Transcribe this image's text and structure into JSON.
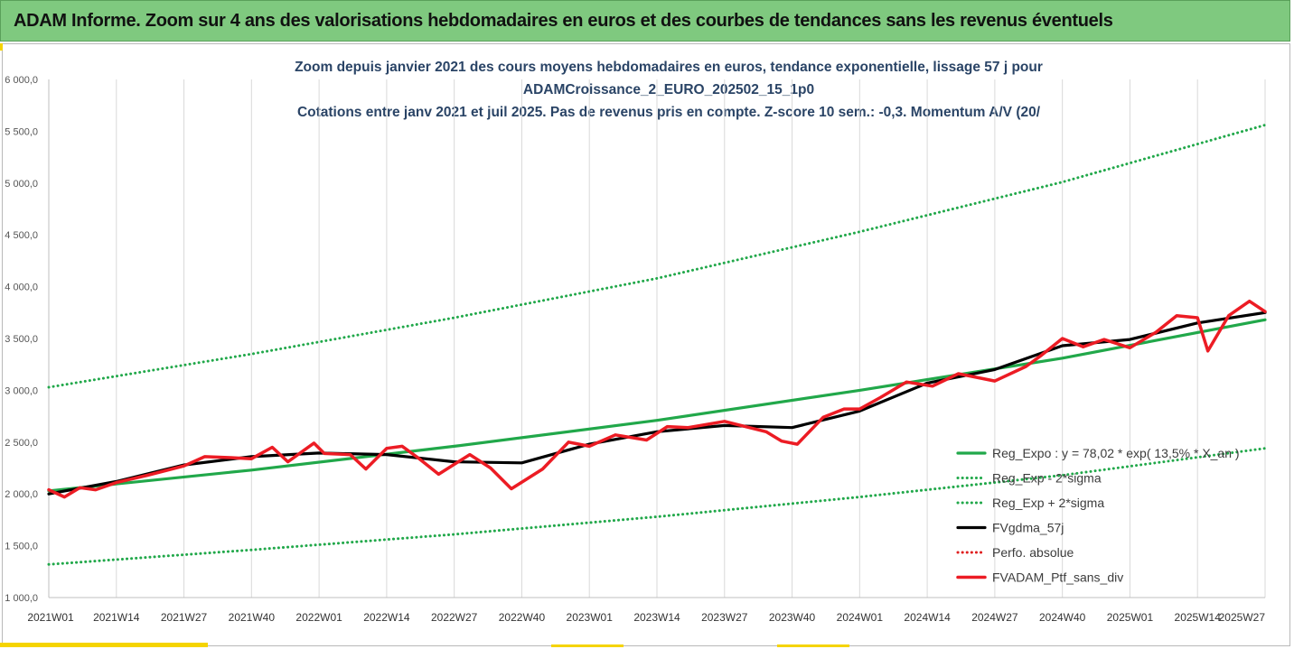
{
  "banner": {
    "title": "ADAM Informe. Zoom sur 4 ans des valorisations hebdomadaires en euros et des courbes de tendances sans les revenus éventuels",
    "color": "#7fc97f"
  },
  "chart_data": {
    "type": "line",
    "title": [
      "Zoom depuis janvier 2021 des cours moyens hebdomadaires  en euros, tendance exponentielle, lissage 57 j pour",
      "ADAMCroissance_2_EURO_202502_15_1p0",
      "Cotations entre janv 2021 et juil 2025. Pas de revenus pris en compte. Z-score 10 sem.: -0,3. Momentum A/V (20/"
    ],
    "xlabel": "",
    "ylabel": "",
    "ylim": [
      1000,
      6000
    ],
    "yticks": [
      "1 000,0",
      "1 500,0",
      "2 000,0",
      "2 500,0",
      "3 000,0",
      "3 500,0",
      "4 000,0",
      "4 500,0",
      "5 000,0",
      "5 500,0",
      "6 000,0"
    ],
    "xticks": [
      "2021W01",
      "2021W14",
      "2021W27",
      "2021W40",
      "2022W01",
      "2022W14",
      "2022W27",
      "2022W40",
      "2023W01",
      "2023W14",
      "2023W27",
      "2023W40",
      "2024W01",
      "2024W14",
      "2024W27",
      "2024W40",
      "2025W01",
      "2025W14",
      "2025W27"
    ],
    "grid": "vertical",
    "legend_position": "bottom-right",
    "series": [
      {
        "name": "Reg_Expo : y = 78,02 * exp( 13,5% *  X_an )",
        "style": "solid",
        "color": "#21a84a",
        "points": [
          [
            "2021W01",
            2030
          ],
          [
            "2021W40",
            2230
          ],
          [
            "2022W27",
            2460
          ],
          [
            "2023W14",
            2710
          ],
          [
            "2024W01",
            3000
          ],
          [
            "2024W40",
            3310
          ],
          [
            "2025W27",
            3680
          ]
        ]
      },
      {
        "name": "Reg_Exp - 2*sigma",
        "style": "dotted",
        "color": "#21a84a",
        "points": [
          [
            "2021W01",
            1320
          ],
          [
            "2021W40",
            1460
          ],
          [
            "2022W27",
            1610
          ],
          [
            "2023W14",
            1780
          ],
          [
            "2024W01",
            1970
          ],
          [
            "2024W40",
            2180
          ],
          [
            "2025W27",
            2440
          ]
        ]
      },
      {
        "name": "Reg_Exp + 2*sigma",
        "style": "dotted",
        "color": "#21a84a",
        "points": [
          [
            "2021W01",
            3030
          ],
          [
            "2021W40",
            3350
          ],
          [
            "2022W27",
            3700
          ],
          [
            "2023W14",
            4080
          ],
          [
            "2024W01",
            4530
          ],
          [
            "2024W40",
            5010
          ],
          [
            "2025W27",
            5560
          ]
        ]
      },
      {
        "name": "FVgdma_57j",
        "style": "solid",
        "color": "#000000",
        "points": [
          [
            "2021W01",
            2000
          ],
          [
            "2021W14",
            2120
          ],
          [
            "2021W27",
            2280
          ],
          [
            "2021W40",
            2360
          ],
          [
            "2022W01",
            2395
          ],
          [
            "2022W14",
            2380
          ],
          [
            "2022W27",
            2310
          ],
          [
            "2022W40",
            2300
          ],
          [
            "2023W01",
            2480
          ],
          [
            "2023W14",
            2600
          ],
          [
            "2023W27",
            2660
          ],
          [
            "2023W40",
            2640
          ],
          [
            "2024W01",
            2800
          ],
          [
            "2024W14",
            3070
          ],
          [
            "2024W27",
            3200
          ],
          [
            "2024W40",
            3430
          ],
          [
            "2025W01",
            3490
          ],
          [
            "2025W14",
            3650
          ],
          [
            "2025W27",
            3750
          ]
        ]
      },
      {
        "name": "Perfo. absolue",
        "style": "dotted",
        "color": "#e02020",
        "points": []
      },
      {
        "name": "FVADAM_Ptf_sans_div",
        "style": "solid",
        "color": "#ec1c24",
        "points": [
          [
            "2021W01",
            2040
          ],
          [
            "2021W04",
            1970
          ],
          [
            "2021W07",
            2060
          ],
          [
            "2021W10",
            2040
          ],
          [
            "2021W14",
            2110
          ],
          [
            "2021W20",
            2180
          ],
          [
            "2021W27",
            2270
          ],
          [
            "2021W31",
            2360
          ],
          [
            "2021W36",
            2350
          ],
          [
            "2021W40",
            2340
          ],
          [
            "2021W44",
            2450
          ],
          [
            "2021W47",
            2310
          ],
          [
            "2021W52",
            2490
          ],
          [
            "2022W02",
            2390
          ],
          [
            "2022W07",
            2380
          ],
          [
            "2022W10",
            2240
          ],
          [
            "2022W14",
            2440
          ],
          [
            "2022W17",
            2460
          ],
          [
            "2022W20",
            2350
          ],
          [
            "2022W24",
            2190
          ],
          [
            "2022W30",
            2380
          ],
          [
            "2022W34",
            2250
          ],
          [
            "2022W38",
            2050
          ],
          [
            "2022W44",
            2240
          ],
          [
            "2022W49",
            2500
          ],
          [
            "2023W01",
            2460
          ],
          [
            "2023W06",
            2570
          ],
          [
            "2023W12",
            2520
          ],
          [
            "2023W16",
            2650
          ],
          [
            "2023W20",
            2640
          ],
          [
            "2023W27",
            2700
          ],
          [
            "2023W35",
            2600
          ],
          [
            "2023W38",
            2510
          ],
          [
            "2023W41",
            2480
          ],
          [
            "2023W46",
            2740
          ],
          [
            "2023W50",
            2820
          ],
          [
            "2024W01",
            2820
          ],
          [
            "2024W05",
            2930
          ],
          [
            "2024W10",
            3080
          ],
          [
            "2024W15",
            3040
          ],
          [
            "2024W20",
            3160
          ],
          [
            "2024W27",
            3090
          ],
          [
            "2024W33",
            3230
          ],
          [
            "2024W36",
            3340
          ],
          [
            "2024W40",
            3500
          ],
          [
            "2024W44",
            3420
          ],
          [
            "2024W48",
            3490
          ],
          [
            "2025W01",
            3410
          ],
          [
            "2025W06",
            3560
          ],
          [
            "2025W10",
            3720
          ],
          [
            "2025W14",
            3700
          ],
          [
            "2025W16",
            3380
          ],
          [
            "2025W20",
            3720
          ],
          [
            "2025W24",
            3860
          ],
          [
            "2025W27",
            3760
          ]
        ]
      }
    ]
  }
}
